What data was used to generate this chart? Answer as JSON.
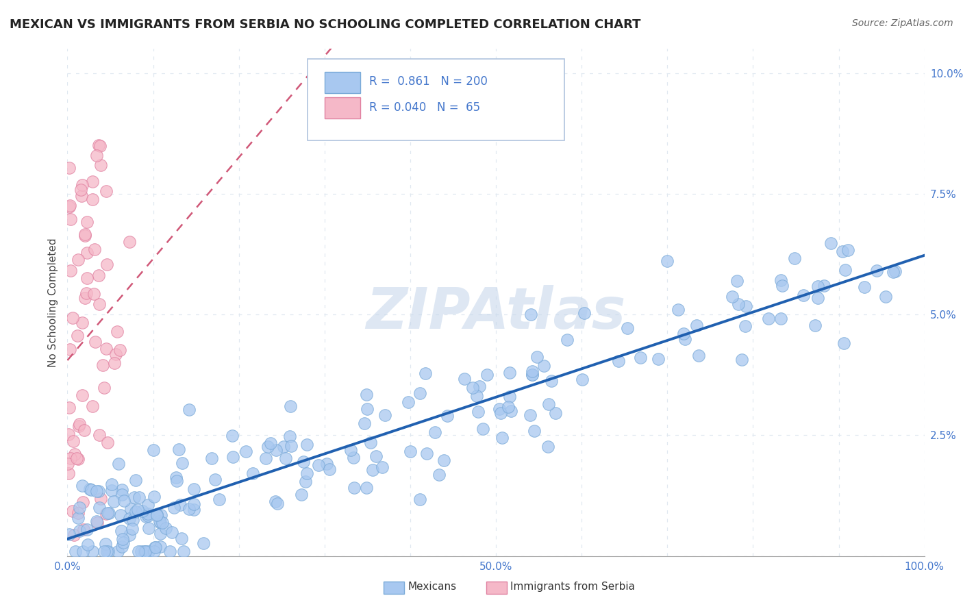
{
  "title": "MEXICAN VS IMMIGRANTS FROM SERBIA NO SCHOOLING COMPLETED CORRELATION CHART",
  "source": "Source: ZipAtlas.com",
  "ylabel": "No Schooling Completed",
  "xlim": [
    0,
    1.0
  ],
  "ylim": [
    0,
    0.105
  ],
  "x_ticks": [
    0,
    0.1,
    0.2,
    0.3,
    0.4,
    0.5,
    0.6,
    0.7,
    0.8,
    0.9,
    1.0
  ],
  "x_tick_labels": [
    "0.0%",
    "",
    "",
    "",
    "",
    "50.0%",
    "",
    "",
    "",
    "",
    "100.0%"
  ],
  "y_ticks": [
    0,
    0.025,
    0.05,
    0.075,
    0.1
  ],
  "y_tick_labels": [
    "",
    "2.5%",
    "5.0%",
    "7.5%",
    "10.0%"
  ],
  "mexicans_color": "#a8c8f0",
  "mexicans_edge": "#7aaad8",
  "serbia_color": "#f5b8c8",
  "serbia_edge": "#e080a0",
  "mexicans_R": 0.861,
  "mexicans_N": 200,
  "serbia_R": 0.04,
  "serbia_N": 65,
  "mexicans_line_color": "#2060b0",
  "serbia_line_color": "#d05878",
  "background_color": "#ffffff",
  "grid_color": "#e0e8f0",
  "title_color": "#222222",
  "watermark_color": "#c8d8ec",
  "watermark_alpha": 0.6,
  "legend_box_color": "#ffffff",
  "legend_border_color": "#b0c4de",
  "legend_text_color": "#4477cc"
}
